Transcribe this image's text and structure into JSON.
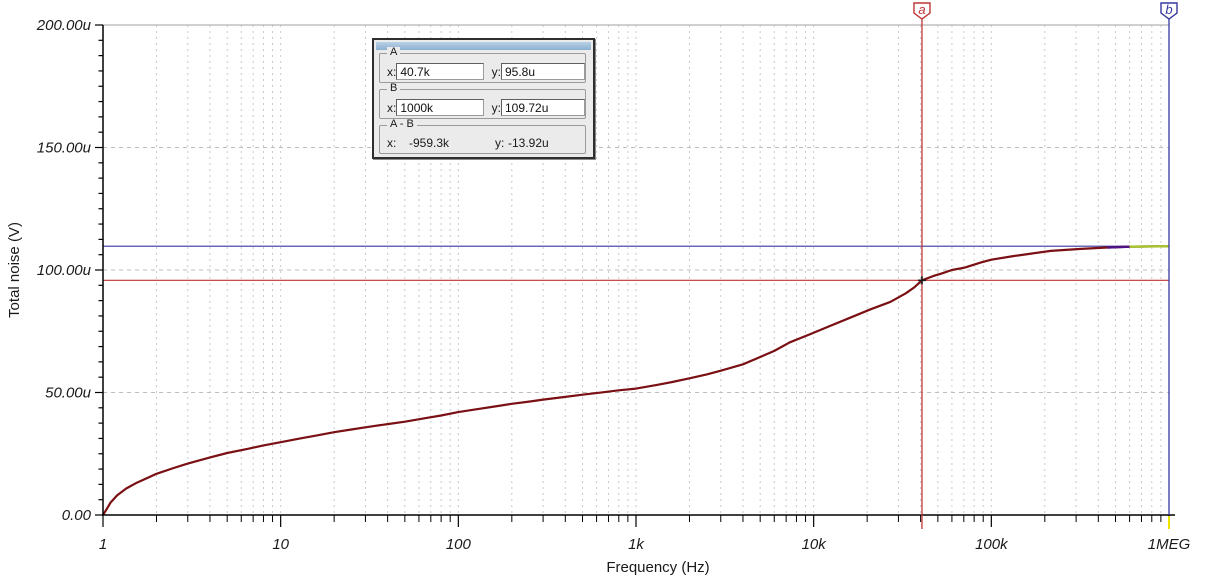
{
  "cursor_panel": {
    "groups": [
      {
        "label": "A",
        "x_label": "x:",
        "x_value": "40.7k",
        "y_label": "y:",
        "y_value": "95.8u"
      },
      {
        "label": "B",
        "x_label": "x:",
        "x_value": "1000k",
        "y_label": "y:",
        "y_value": "109.72u"
      },
      {
        "label": "A - B",
        "x_label": "x:",
        "x_value": "-959.3k",
        "y_label": "y:",
        "y_value": "-13.92u"
      }
    ]
  },
  "cursors": {
    "a": {
      "label": "a",
      "freq": 40700,
      "value_u": 95.8,
      "color": "#c03535",
      "flag_fill": "#ffffff"
    },
    "b": {
      "label": "b",
      "freq": 1000000,
      "value_u": 109.72,
      "color": "#3737a0",
      "flag_fill": "#ffffff",
      "below_axis_color": "#ede400"
    }
  },
  "chart_data": {
    "type": "line",
    "title": "",
    "xlabel": "Frequency (Hz)",
    "ylabel": "Total noise (V)",
    "x_scale": "log",
    "xlim": [
      1,
      1000000
    ],
    "ylim_u": [
      0,
      200
    ],
    "y_unit": "V (values in microvolts, u)",
    "grid": "dashed light-gray, vertical at every log subdivision, horizontal every 50u",
    "legend_position": "none",
    "x_tick_labels": [
      "1",
      "10",
      "100",
      "1k",
      "10k",
      "100k",
      "1MEG"
    ],
    "y_tick_labels": [
      "0.00",
      "50.00u",
      "100.00u",
      "150.00u",
      "200.00u"
    ],
    "y_minor_step_u": 6.25,
    "series": [
      {
        "name": "Total noise",
        "color": "#7a1014",
        "points": [
          [
            1,
            0
          ],
          [
            1.05,
            2.5
          ],
          [
            1.1,
            5
          ],
          [
            1.2,
            8
          ],
          [
            1.35,
            10.8
          ],
          [
            1.55,
            13.2
          ],
          [
            1.8,
            15.3
          ],
          [
            2,
            16.8
          ],
          [
            2.5,
            19.2
          ],
          [
            3,
            21
          ],
          [
            4,
            23.5
          ],
          [
            5,
            25.3
          ],
          [
            6.5,
            27
          ],
          [
            8,
            28.4
          ],
          [
            10,
            29.7
          ],
          [
            13,
            31.3
          ],
          [
            16,
            32.5
          ],
          [
            20,
            33.8
          ],
          [
            25,
            34.9
          ],
          [
            30,
            35.8
          ],
          [
            40,
            37.1
          ],
          [
            50,
            38.1
          ],
          [
            65,
            39.5
          ],
          [
            80,
            40.6
          ],
          [
            100,
            42
          ],
          [
            130,
            43.3
          ],
          [
            160,
            44.3
          ],
          [
            200,
            45.4
          ],
          [
            250,
            46.3
          ],
          [
            300,
            47.1
          ],
          [
            400,
            48.2
          ],
          [
            500,
            49.1
          ],
          [
            650,
            50.1
          ],
          [
            800,
            50.9
          ],
          [
            1000,
            51.6
          ],
          [
            1300,
            53
          ],
          [
            1600,
            54.3
          ],
          [
            2000,
            55.8
          ],
          [
            2500,
            57.4
          ],
          [
            3000,
            58.9
          ],
          [
            4000,
            61.5
          ],
          [
            5000,
            64.5
          ],
          [
            6000,
            67
          ],
          [
            7350,
            70.5
          ],
          [
            9500,
            73.7
          ],
          [
            12300,
            77.1
          ],
          [
            16000,
            80.5
          ],
          [
            21000,
            84
          ],
          [
            27000,
            87
          ],
          [
            33000,
            90.5
          ],
          [
            37000,
            93
          ],
          [
            40700,
            95.8
          ],
          [
            47000,
            97.5
          ],
          [
            52600,
            98.6
          ],
          [
            60000,
            100
          ],
          [
            71000,
            101
          ],
          [
            87000,
            103
          ],
          [
            100000,
            104.2
          ],
          [
            134000,
            105.7
          ],
          [
            160000,
            106.5
          ],
          [
            216000,
            107.8
          ],
          [
            320000,
            108.6
          ],
          [
            450000,
            109.2
          ],
          [
            600000,
            109.5
          ],
          [
            800000,
            109.65
          ],
          [
            1000000,
            109.72
          ]
        ]
      }
    ],
    "highlight_segments": [
      {
        "name": "overlap-with-b-line",
        "color": "#4e1287",
        "points": [
          [
            450000,
            109.2
          ],
          [
            600000,
            109.5
          ]
        ]
      },
      {
        "name": "curve-end-highlight",
        "color": "#a6c52e",
        "points": [
          [
            600000,
            109.5
          ],
          [
            800000,
            109.65
          ],
          [
            1000000,
            109.72
          ]
        ]
      }
    ],
    "colors": {
      "grid": "#c9c9c9",
      "axis": "#000000",
      "frame_top": "#b4b4b4",
      "tick_text": "#1a1a1a"
    }
  }
}
